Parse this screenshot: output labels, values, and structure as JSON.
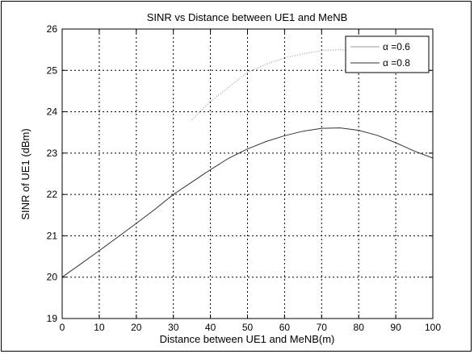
{
  "chart_data": {
    "type": "line",
    "title": "SINR vs Distance between UE1 and MeNB",
    "xlabel": "Distance between UE1 and MeNB(m)",
    "ylabel": "SINR of UE1 (dBm)",
    "xlim": [
      0,
      100
    ],
    "ylim": [
      19,
      26
    ],
    "x_ticks": [
      0,
      10,
      20,
      30,
      40,
      50,
      60,
      70,
      80,
      90,
      100
    ],
    "y_ticks": [
      19,
      20,
      21,
      22,
      23,
      24,
      25,
      26
    ],
    "grid": true,
    "legend_position": "top-right",
    "series": [
      {
        "name": "α =0.6",
        "color": "#9a9a9a",
        "style": "faint-dotted",
        "x": [
          35,
          40,
          45,
          50,
          55,
          60,
          65,
          70,
          75,
          80,
          85
        ],
        "y": [
          23.8,
          24.25,
          24.6,
          24.95,
          25.15,
          25.3,
          25.4,
          25.48,
          25.5,
          25.45,
          25.35
        ]
      },
      {
        "name": "α =0.8",
        "color": "#333333",
        "style": "solid",
        "x": [
          0,
          5,
          10,
          15,
          20,
          25,
          30,
          35,
          40,
          45,
          50,
          55,
          60,
          65,
          70,
          75,
          80,
          85,
          90,
          95,
          100
        ],
        "y": [
          20.0,
          20.32,
          20.64,
          20.97,
          21.3,
          21.64,
          22.0,
          22.3,
          22.6,
          22.88,
          23.1,
          23.28,
          23.42,
          23.53,
          23.6,
          23.61,
          23.55,
          23.43,
          23.25,
          23.05,
          22.88
        ]
      }
    ]
  }
}
